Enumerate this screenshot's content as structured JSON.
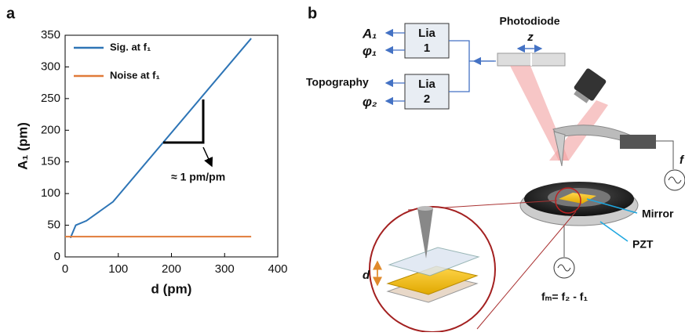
{
  "chart_data": {
    "type": "line",
    "panel": "a",
    "xlabel": "d (pm)",
    "ylabel": "A₁ (pm)",
    "xlim": [
      0,
      400
    ],
    "xticks": [
      0,
      100,
      200,
      300,
      400
    ],
    "ylim": [
      0,
      350
    ],
    "yticks": [
      0,
      50,
      100,
      150,
      200,
      250,
      300,
      350
    ],
    "series": [
      {
        "name": "Sig. at f₁",
        "color": "#2e75b6",
        "x": [
          10,
          20,
          40,
          90,
          350
        ],
        "values": [
          30,
          50,
          57,
          87,
          345
        ]
      },
      {
        "name": "Noise at f₁",
        "color": "#e07b39",
        "x": [
          0,
          350
        ],
        "values": [
          32,
          32
        ]
      }
    ],
    "annotation": "≈ 1 pm/pm"
  },
  "diagram": {
    "panel": "b",
    "outputs": [
      "A₁",
      "φ₁",
      "Topography",
      "φ₂"
    ],
    "boxes": [
      [
        "Lia",
        "1"
      ],
      [
        "Lia",
        "2"
      ]
    ],
    "photodiode": "Photodiode",
    "z": "z",
    "f2": "f",
    "mirror": "Mirror",
    "pzt": "PZT",
    "d": "d",
    "fm": "fₘ= f₂ - f₁"
  }
}
